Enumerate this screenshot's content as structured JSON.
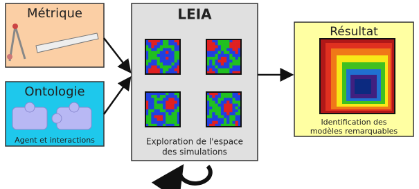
{
  "metrique": {
    "title": "Métrique"
  },
  "ontologie": {
    "title": "Ontologie",
    "caption": "Agent et interactions"
  },
  "leia": {
    "title": "LEIA",
    "caption": [
      "Exploration de l'espace",
      "des simulations"
    ]
  },
  "resultat": {
    "title": "Résultat",
    "caption": [
      "Identification des",
      "modèles remarquables"
    ]
  }
}
